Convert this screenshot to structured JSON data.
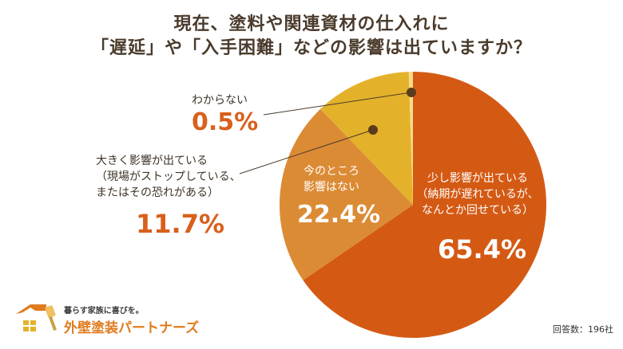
{
  "title_line1": "現在、塗料や関連資材の仕入れに",
  "title_line2": "「遅延」や「入手困難」などの影響は出ていますか？",
  "chart_data": {
    "type": "pie",
    "start": "top",
    "direction": "clockwise",
    "slices": [
      {
        "label": "少し影響が出ている（納期が遅れているが、なんとか回せている）",
        "label_lines": [
          "少し影響が出ている",
          "（納期が遅れているが、",
          "なんとか回せている）"
        ],
        "value": 65.4,
        "value_text": "65.4%",
        "color": "#d45a14"
      },
      {
        "label": "今のところ影響はない",
        "label_lines": [
          "今のところ",
          "影響はない"
        ],
        "value": 22.4,
        "value_text": "22.4%",
        "color": "#dc8b35"
      },
      {
        "label": "大きく影響が出ている（現場がストップしている、またはその恐れがある）",
        "label_lines": [
          "大きく影響が出ている",
          "（現場がストップしている、",
          "またはその恐れがある）"
        ],
        "value": 11.7,
        "value_text": "11.7%",
        "color": "#e4b22a"
      },
      {
        "label": "わからない",
        "label_lines": [
          "わからない"
        ],
        "value": 0.5,
        "value_text": "0.5%",
        "color": "#f6dc8a"
      }
    ]
  },
  "logo": {
    "tagline": "暮らす家族に喜びを。",
    "name": "外壁塗装パートナーズ"
  },
  "respondents": "回答数：196社"
}
